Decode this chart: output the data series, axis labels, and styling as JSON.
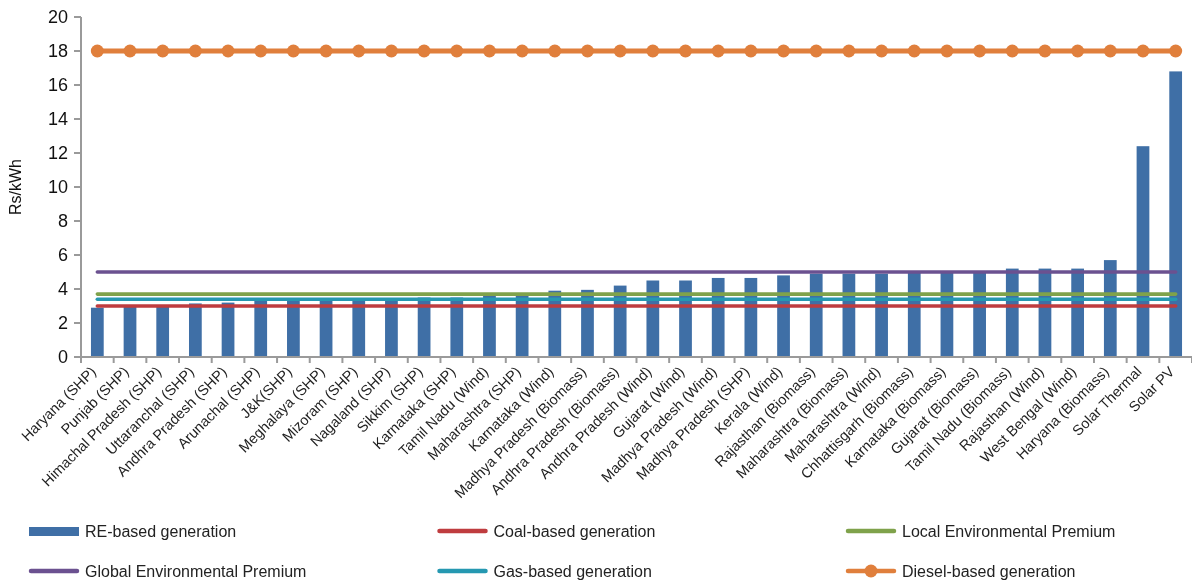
{
  "chart_data": {
    "type": "bar",
    "ylabel": "Rs/kWh",
    "categories": [
      "Haryana (SHP)",
      "Punjab (SHP)",
      "Himachal Pradesh (SHP)",
      "Uttaranchal (SHP)",
      "Andhra Pradesh (SHP)",
      "Arunachal (SHP)",
      "J&K(SHP)",
      "Meghalaya (SHP)",
      "Mizoram (SHP)",
      "Nagaland (SHP)",
      "Sikkim (SHP)",
      "Karnataka (SHP)",
      "Tamil Nadu (Wind)",
      "Maharashtra (SHP)",
      "Karnataka (Wind)",
      "Madhya Pradesh (Biomass)",
      "Andhra Pradesh (Biomass)",
      "Andhra Pradesh (Wind)",
      "Gujarat (Wind)",
      "Madhya Pradesh (Wind)",
      "Madhya Pradesh (SHP)",
      "Kerala (Wind)",
      "Rajasthan (Biomass)",
      "Maharashtra (Biomass)",
      "Maharashtra (Wind)",
      "Chhattisgarh (Biomass)",
      "Karnataka (Biomass)",
      "Gujarat (Biomass)",
      "Tamil Nadu (Biomass)",
      "Rajasthan (Wind)",
      "West Bengal (Wind)",
      "Haryana (Biomass)",
      "Solar Thermal",
      "Solar PV"
    ],
    "ylim": [
      0,
      20
    ],
    "yticks": [
      0,
      2,
      4,
      6,
      8,
      10,
      12,
      14,
      16,
      18,
      20
    ],
    "legend": "bottom",
    "series": [
      {
        "name": "RE-based generation",
        "color": "#3f6fa6",
        "values": [
          2.9,
          3.0,
          3.0,
          3.15,
          3.2,
          3.3,
          3.3,
          3.4,
          3.4,
          3.4,
          3.5,
          3.5,
          3.6,
          3.6,
          3.9,
          3.95,
          4.2,
          4.5,
          4.5,
          4.65,
          4.65,
          4.8,
          4.9,
          4.9,
          4.9,
          5.0,
          5.0,
          5.0,
          5.2,
          5.2,
          5.2,
          5.7,
          12.4,
          16.8
        ]
      },
      {
        "name": "Coal-based generation",
        "type": "line",
        "color": "#bf3c3f",
        "values": [
          3,
          3,
          3,
          3,
          3,
          3,
          3,
          3,
          3,
          3,
          3,
          3,
          3,
          3,
          3,
          3,
          3,
          3,
          3,
          3,
          3,
          3,
          3,
          3,
          3,
          3,
          3,
          3,
          3,
          3,
          3,
          3,
          3,
          3
        ]
      },
      {
        "name": "Local Environmental Premium",
        "type": "line",
        "color": "#7fa24b",
        "values": [
          3.7,
          3.7,
          3.7,
          3.7,
          3.7,
          3.7,
          3.7,
          3.7,
          3.7,
          3.7,
          3.7,
          3.7,
          3.7,
          3.7,
          3.7,
          3.7,
          3.7,
          3.7,
          3.7,
          3.7,
          3.7,
          3.7,
          3.7,
          3.7,
          3.7,
          3.7,
          3.7,
          3.7,
          3.7,
          3.7,
          3.7,
          3.7,
          3.7,
          3.7
        ]
      },
      {
        "name": "Global Environmental Premium",
        "type": "line",
        "color": "#6b5190",
        "values": [
          5,
          5,
          5,
          5,
          5,
          5,
          5,
          5,
          5,
          5,
          5,
          5,
          5,
          5,
          5,
          5,
          5,
          5,
          5,
          5,
          5,
          5,
          5,
          5,
          5,
          5,
          5,
          5,
          5,
          5,
          5,
          5,
          5,
          5
        ]
      },
      {
        "name": "Gas-based generation",
        "type": "line",
        "color": "#2598b1",
        "values": [
          3.4,
          3.4,
          3.4,
          3.4,
          3.4,
          3.4,
          3.4,
          3.4,
          3.4,
          3.4,
          3.4,
          3.4,
          3.4,
          3.4,
          3.4,
          3.4,
          3.4,
          3.4,
          3.4,
          3.4,
          3.4,
          3.4,
          3.4,
          3.4,
          3.4,
          3.4,
          3.4,
          3.4,
          3.4,
          3.4,
          3.4,
          3.4,
          3.4,
          3.4
        ]
      },
      {
        "name": "Diesel-based generation",
        "type": "line",
        "color": "#e07f3c",
        "marker": "circle",
        "values": [
          18,
          18,
          18,
          18,
          18,
          18,
          18,
          18,
          18,
          18,
          18,
          18,
          18,
          18,
          18,
          18,
          18,
          18,
          18,
          18,
          18,
          18,
          18,
          18,
          18,
          18,
          18,
          18,
          18,
          18,
          18,
          18,
          18,
          18
        ]
      }
    ]
  }
}
